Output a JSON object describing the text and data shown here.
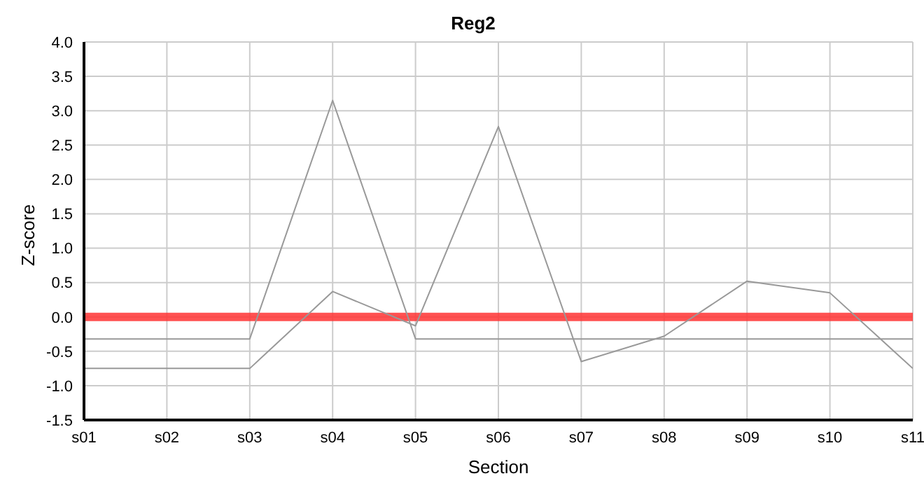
{
  "chart_data": {
    "type": "line",
    "title": "Reg2",
    "xlabel": "Section",
    "ylabel": "Z-score",
    "categories": [
      "s01",
      "s02",
      "s03",
      "s04",
      "s05",
      "s06",
      "s07",
      "s08",
      "s09",
      "s10",
      "s11"
    ],
    "series": [
      {
        "color": "#999999",
        "values": [
          -0.32,
          -0.32,
          -0.32,
          3.15,
          -0.32,
          -0.32,
          -0.32,
          -0.32,
          -0.32,
          -0.32,
          -0.32
        ]
      },
      {
        "color": "#999999",
        "values": [
          -0.75,
          -0.75,
          -0.75,
          0.37,
          -0.13,
          2.77,
          -0.65,
          -0.28,
          0.52,
          0.35,
          -0.75
        ]
      }
    ],
    "ylim": [
      -1.5,
      4.0
    ],
    "yticks": [
      {
        "value": -1.5,
        "label": "-1.5"
      },
      {
        "value": -1,
        "label": "-1.0"
      },
      {
        "value": -0.5,
        "label": "-0.5"
      },
      {
        "value": 0,
        "label": "0.0"
      },
      {
        "value": 0.5,
        "label": "0.5"
      },
      {
        "value": 1,
        "label": "1.0"
      },
      {
        "value": 1.5,
        "label": "1.5"
      },
      {
        "value": 2,
        "label": "2.0"
      },
      {
        "value": 2.5,
        "label": "2.5"
      },
      {
        "value": 3,
        "label": "3.0"
      },
      {
        "value": 3.5,
        "label": "3.5"
      },
      {
        "value": 4,
        "label": "4.0"
      }
    ],
    "ref_lines": [
      {
        "axis": "y",
        "value": 0,
        "color": "#ff3333"
      }
    ],
    "grid": true,
    "legend": false,
    "marker": "none",
    "line_style": "solid"
  }
}
